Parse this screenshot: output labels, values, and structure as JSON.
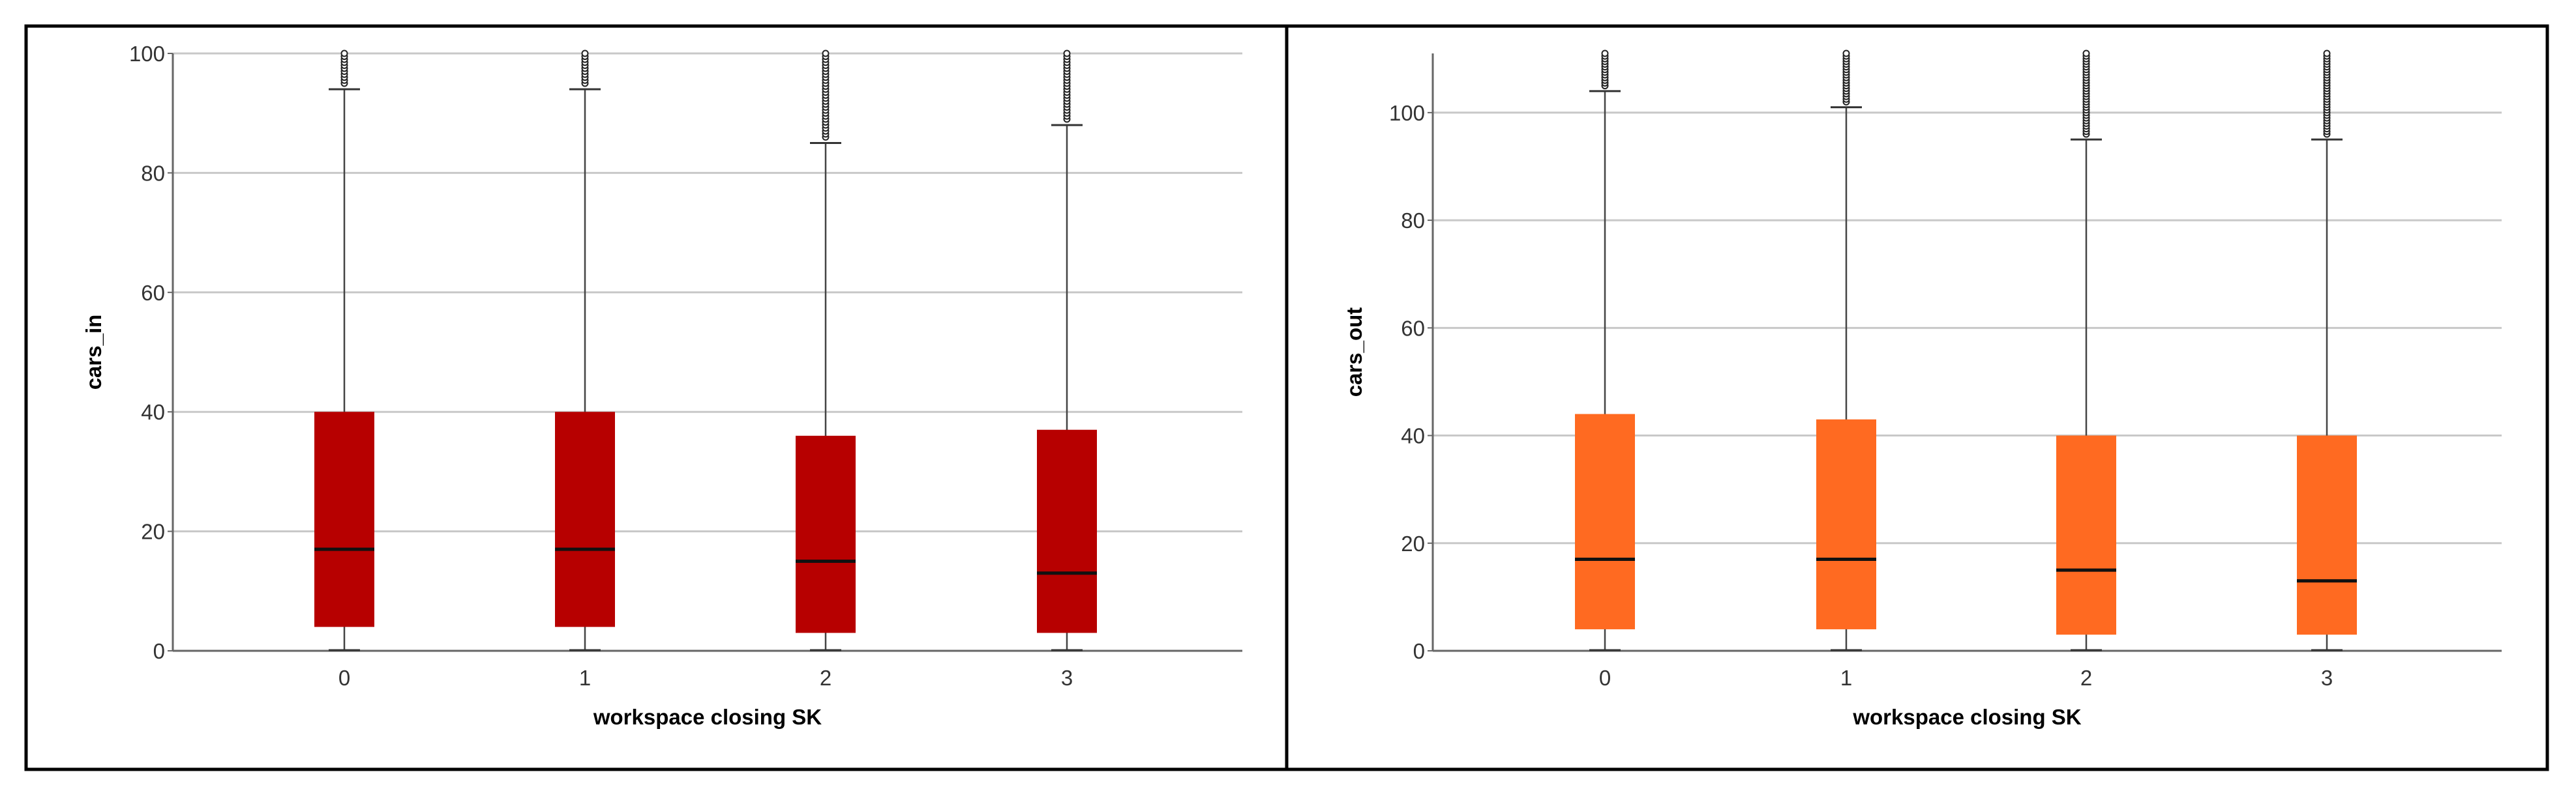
{
  "chart_data": [
    {
      "type": "box",
      "title": "",
      "xlabel": "workspace closing SK",
      "ylabel": "cars_in",
      "ylim": [
        0,
        100
      ],
      "yticks": [
        0,
        20,
        40,
        60,
        80,
        100
      ],
      "categories": [
        "0",
        "1",
        "2",
        "3"
      ],
      "color": "#b70000",
      "grid": true,
      "boxes": [
        {
          "category": "0",
          "min": 0,
          "q1": 4,
          "median": 17,
          "q3": 40,
          "whisker_high": 94,
          "outliers_from": 95,
          "outliers_to": 100
        },
        {
          "category": "1",
          "min": 0,
          "q1": 4,
          "median": 17,
          "q3": 40,
          "whisker_high": 94,
          "outliers_from": 95,
          "outliers_to": 100
        },
        {
          "category": "2",
          "min": 0,
          "q1": 3,
          "median": 15,
          "q3": 36,
          "whisker_high": 85,
          "outliers_from": 86,
          "outliers_to": 100
        },
        {
          "category": "3",
          "min": 0,
          "q1": 3,
          "median": 13,
          "q3": 37,
          "whisker_high": 88,
          "outliers_from": 89,
          "outliers_to": 100
        }
      ]
    },
    {
      "type": "box",
      "title": "",
      "xlabel": "workspace closing SK",
      "ylabel": "cars_out",
      "ylim": [
        0,
        111
      ],
      "yticks": [
        0,
        20,
        40,
        60,
        80,
        100
      ],
      "categories": [
        "0",
        "1",
        "2",
        "3"
      ],
      "color": "#ff6a21",
      "grid": true,
      "boxes": [
        {
          "category": "0",
          "min": 0,
          "q1": 4,
          "median": 17,
          "q3": 44,
          "whisker_high": 104,
          "outliers_from": 105,
          "outliers_to": 111
        },
        {
          "category": "1",
          "min": 0,
          "q1": 4,
          "median": 17,
          "q3": 43,
          "whisker_high": 101,
          "outliers_from": 102,
          "outliers_to": 111
        },
        {
          "category": "2",
          "min": 0,
          "q1": 3,
          "median": 15,
          "q3": 40,
          "whisker_high": 95,
          "outliers_from": 96,
          "outliers_to": 111
        },
        {
          "category": "3",
          "min": 0,
          "q1": 3,
          "median": 13,
          "q3": 40,
          "whisker_high": 95,
          "outliers_from": 96,
          "outliers_to": 111
        }
      ]
    }
  ]
}
